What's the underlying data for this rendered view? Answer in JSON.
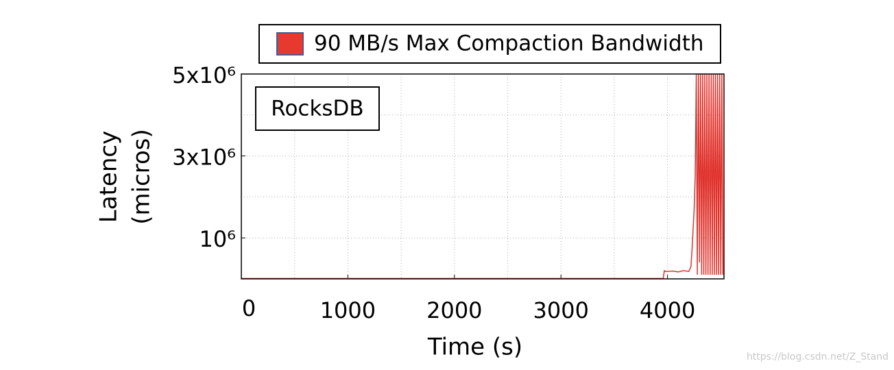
{
  "chart_data": {
    "type": "line",
    "xlabel": "Time (s)",
    "ylabel": [
      "Latency",
      "(micros)"
    ],
    "annotation": "RocksDB",
    "watermark": "https://blog.csdn.net/Z_Stand",
    "legend": "top",
    "grid": true,
    "xlim": [
      0,
      4530
    ],
    "xticks": [
      0,
      1000,
      2000,
      3000,
      4000
    ],
    "x_minor_ticks": [
      500,
      1500,
      2500,
      3500
    ],
    "ylim": [
      0,
      5000000
    ],
    "yticks": [
      {
        "value": 1000000,
        "label": "10⁶"
      },
      {
        "value": 3000000,
        "label": "3x10⁶"
      },
      {
        "value": 5000000,
        "label": "5x10⁶"
      }
    ],
    "y_minor_ticks": [
      2000000,
      4000000
    ],
    "x": [
      0,
      500,
      1000,
      1500,
      2000,
      2500,
      3000,
      3500,
      3960,
      3970,
      3980,
      4050,
      4100,
      4150,
      4200,
      4220,
      4230,
      4240,
      4250,
      4260,
      4270,
      4280,
      4290,
      4300,
      4310,
      4320,
      4330,
      4340,
      4350,
      4360,
      4370,
      4380,
      4390,
      4400,
      4410,
      4420,
      4430,
      4440,
      4450,
      4460,
      4470,
      4480,
      4490,
      4500,
      4510,
      4520
    ],
    "series": [
      {
        "name": "90 MB/s Max Compaction Bandwidth",
        "color": "#e0312b",
        "values": [
          10000,
          10000,
          10000,
          10000,
          10000,
          10000,
          10000,
          10000,
          10000,
          200000,
          180000,
          190000,
          170000,
          200000,
          180000,
          300000,
          700000,
          1200000,
          1700000,
          2500000,
          5000000,
          100000,
          5000000,
          400000,
          5000000,
          100000,
          5000000,
          100000,
          5000000,
          100000,
          5000000,
          100000,
          5000000,
          100000,
          5000000,
          100000,
          5000000,
          100000,
          5000000,
          100000,
          5000000,
          100000,
          5000000,
          100000,
          5000000,
          100000
        ]
      }
    ]
  }
}
